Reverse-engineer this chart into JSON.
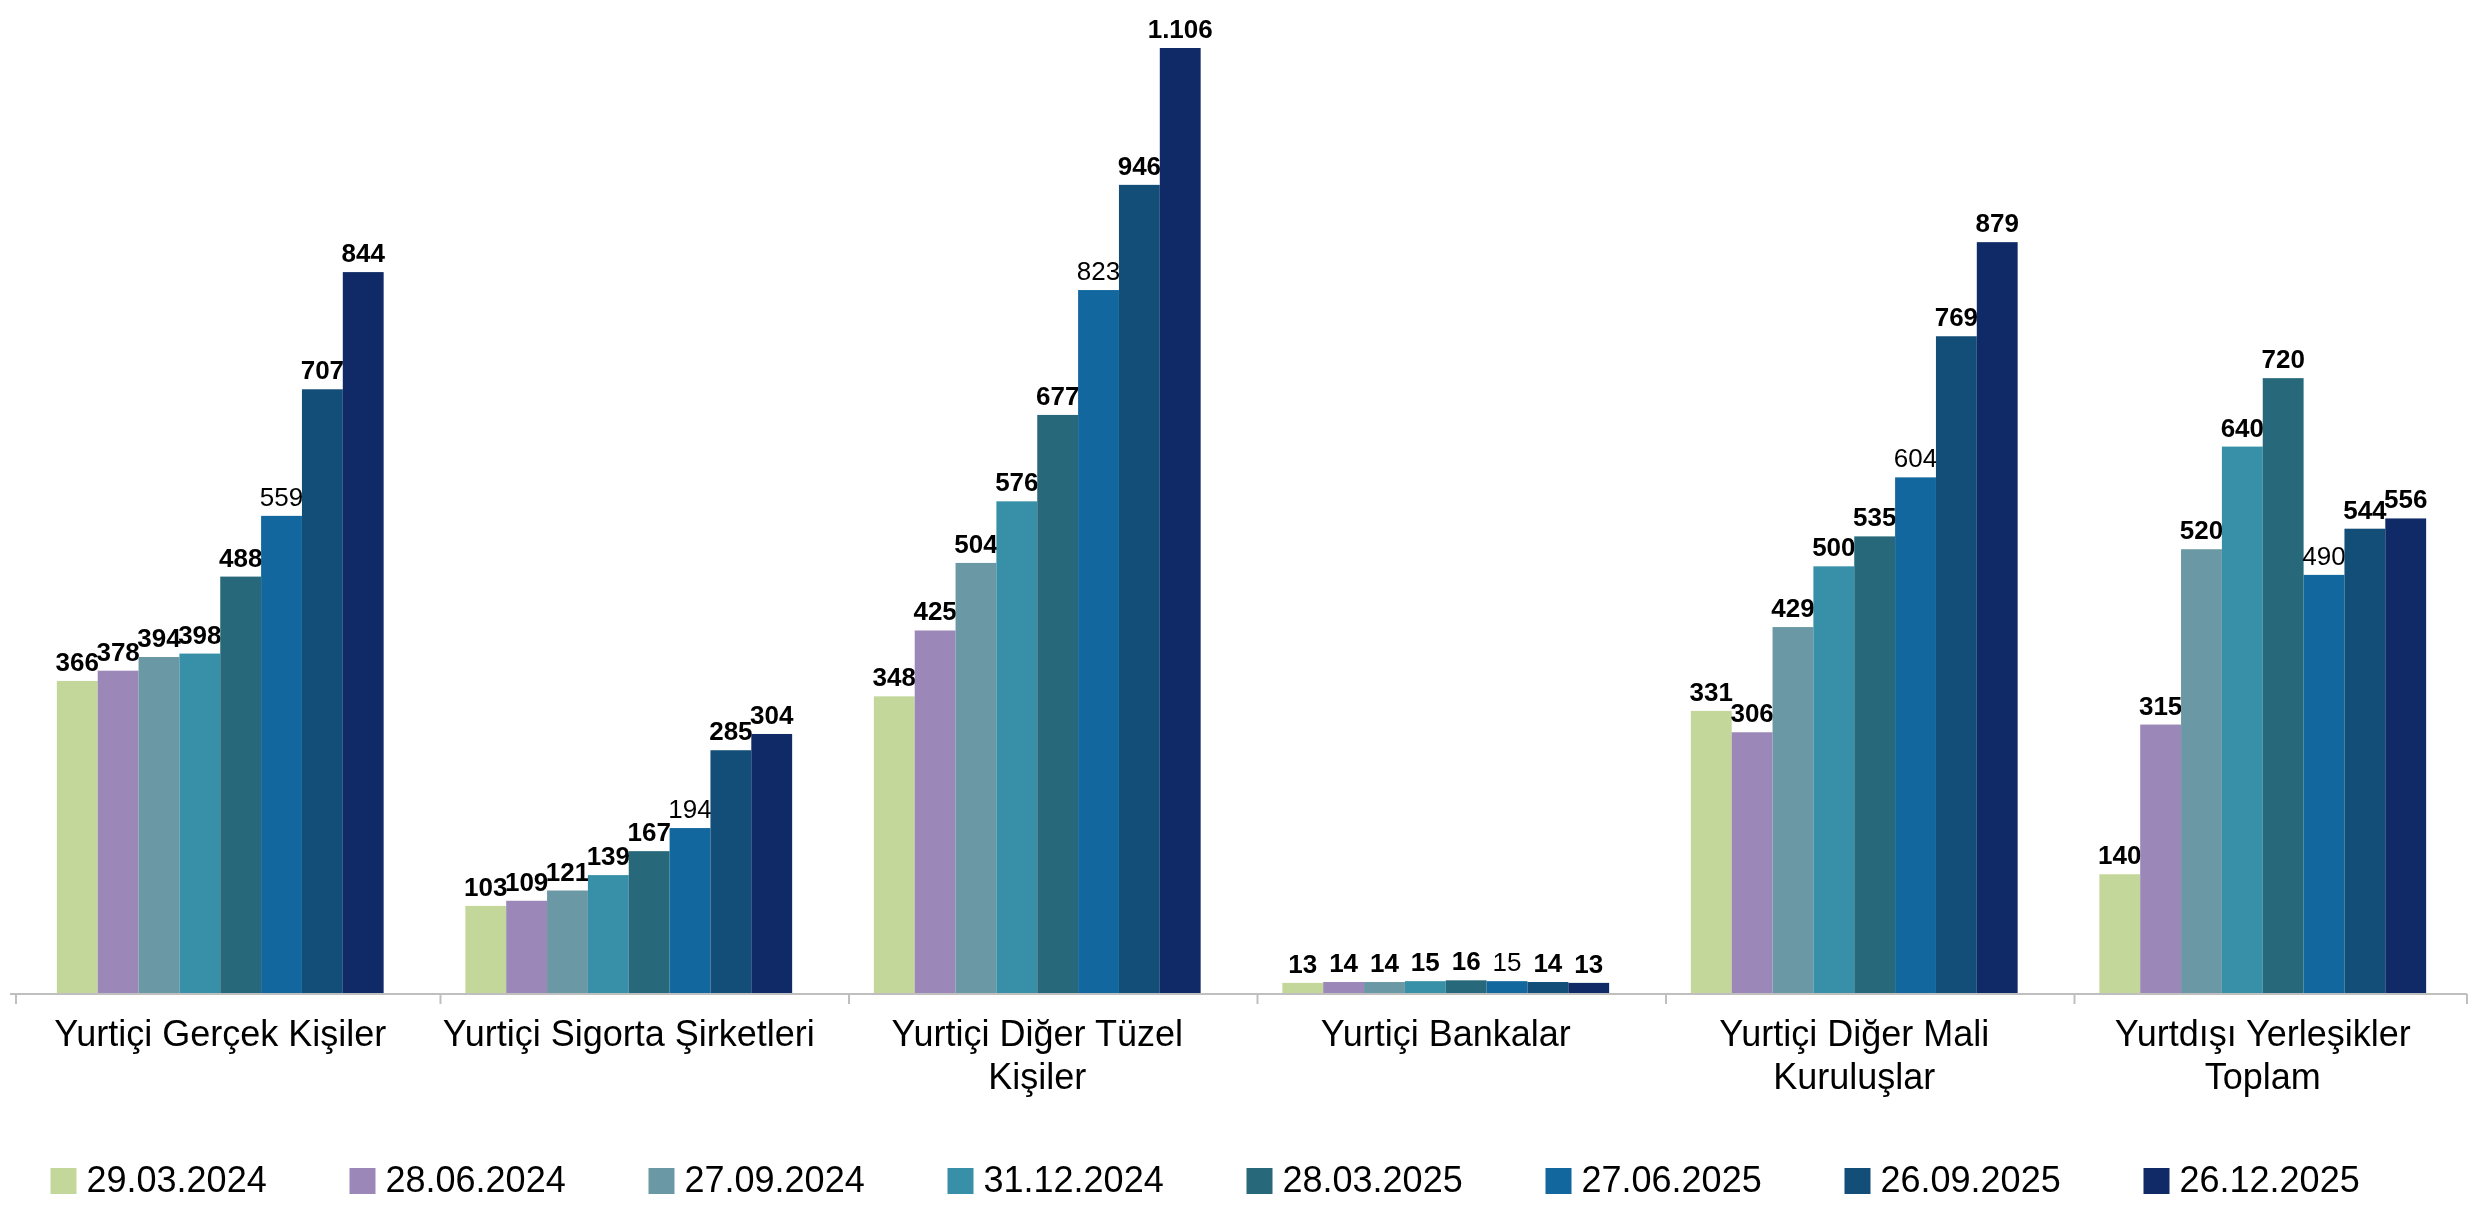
{
  "chart_data": {
    "type": "bar",
    "categories": [
      "Yurtiçi Gerçek Kişiler",
      "Yurtiçi Sigorta Şirketleri",
      "Yurtiçi Diğer Tüzel Kişiler",
      "Yurtiçi Bankalar",
      "Yurtiçi Diğer Mali Kuruluşlar",
      "Yurtdışı Yerleşikler Toplam"
    ],
    "tick_labels": "x",
    "legend": "bottom",
    "series": [
      {
        "name": "29.03.2024",
        "color": "#c4d79b",
        "values": [
          366,
          103,
          348,
          13,
          331,
          140
        ],
        "value_labels": [
          "366",
          "103",
          "348",
          "13",
          "331",
          "140"
        ]
      },
      {
        "name": "28.06.2024",
        "color": "#9b87b8",
        "values": [
          378,
          109,
          425,
          14,
          306,
          315
        ],
        "value_labels": [
          "378",
          "109",
          "425",
          "14",
          "306",
          "315"
        ]
      },
      {
        "name": "27.09.2024",
        "color": "#6a98a4",
        "values": [
          394,
          121,
          504,
          14,
          429,
          520
        ],
        "value_labels": [
          "394",
          "121",
          "504",
          "14",
          "429",
          "520"
        ]
      },
      {
        "name": "31.12.2024",
        "color": "#3790a8",
        "values": [
          398,
          139,
          576,
          15,
          500,
          640
        ],
        "value_labels": [
          "398",
          "139",
          "576",
          "15",
          "500",
          "640"
        ]
      },
      {
        "name": "28.03.2025",
        "color": "#27687a",
        "values": [
          488,
          167,
          677,
          16,
          535,
          720
        ],
        "value_labels": [
          "488",
          "167",
          "677",
          "16",
          "535",
          "720"
        ]
      },
      {
        "name": "27.06.2025",
        "color": "#11679e",
        "values": [
          559,
          194,
          823,
          15,
          604,
          490
        ],
        "value_labels": [
          "559",
          "194",
          "823",
          "15",
          "604",
          "490"
        ]
      },
      {
        "name": "26.09.2025",
        "color": "#134e79",
        "values": [
          707,
          285,
          946,
          14,
          769,
          544
        ],
        "value_labels": [
          "707",
          "285",
          "946",
          "14",
          "769",
          "544"
        ]
      },
      {
        "name": "26.12.2025",
        "color": "#0f2a66",
        "values": [
          844,
          304,
          1106,
          13,
          879,
          556
        ],
        "value_labels": [
          "844",
          "304",
          "1.106",
          "13",
          "879",
          "556"
        ]
      }
    ]
  }
}
